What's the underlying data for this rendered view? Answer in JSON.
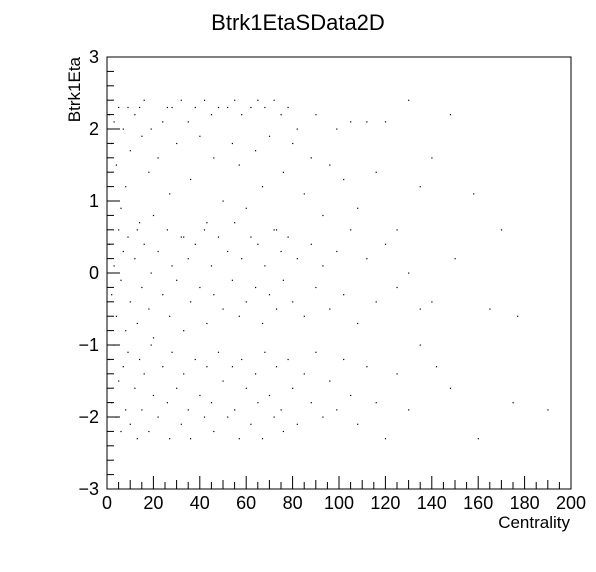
{
  "chart_data": {
    "type": "scatter",
    "title": "Btrk1EtaSData2D",
    "xlabel": "Centrality",
    "ylabel": "Btrk1Eta",
    "xlim": [
      0,
      200
    ],
    "ylim": [
      -3,
      3
    ],
    "x_ticks": [
      0,
      20,
      40,
      60,
      80,
      100,
      120,
      140,
      160,
      180,
      200
    ],
    "y_ticks": [
      -3,
      -2,
      -1,
      0,
      1,
      2,
      3
    ],
    "grid": false,
    "legend": "none",
    "marker_color": "#000000",
    "series": [
      {
        "points": [
          [
            1,
            2.2
          ],
          [
            2,
            1.8
          ],
          [
            3,
            2.1
          ],
          [
            4,
            1.5
          ],
          [
            5,
            2.3
          ],
          [
            6,
            0.9
          ],
          [
            7,
            2.0
          ],
          [
            8,
            1.2
          ],
          [
            9,
            2.3
          ],
          [
            10,
            1.7
          ],
          [
            12,
            2.2
          ],
          [
            13,
            0.6
          ],
          [
            14,
            2.3
          ],
          [
            15,
            1.9
          ],
          [
            16,
            2.4
          ],
          [
            18,
            1.4
          ],
          [
            19,
            2.0
          ],
          [
            20,
            0.8
          ],
          [
            22,
            1.6
          ],
          [
            24,
            2.1
          ],
          [
            26,
            2.3
          ],
          [
            27,
            1.1
          ],
          [
            28,
            2.3
          ],
          [
            30,
            1.8
          ],
          [
            32,
            2.4
          ],
          [
            33,
            0.5
          ],
          [
            35,
            2.1
          ],
          [
            36,
            1.3
          ],
          [
            38,
            2.3
          ],
          [
            40,
            1.9
          ],
          [
            42,
            2.4
          ],
          [
            43,
            0.7
          ],
          [
            45,
            2.2
          ],
          [
            46,
            1.6
          ],
          [
            48,
            2.3
          ],
          [
            50,
            1.0
          ],
          [
            52,
            2.3
          ],
          [
            54,
            1.8
          ],
          [
            55,
            2.4
          ],
          [
            57,
            1.5
          ],
          [
            58,
            2.2
          ],
          [
            60,
            0.9
          ],
          [
            62,
            2.3
          ],
          [
            64,
            1.7
          ],
          [
            65,
            2.4
          ],
          [
            67,
            1.2
          ],
          [
            68,
            2.3
          ],
          [
            70,
            1.9
          ],
          [
            72,
            2.4
          ],
          [
            73,
            0.6
          ],
          [
            75,
            2.2
          ],
          [
            76,
            1.4
          ],
          [
            78,
            2.3
          ],
          [
            80,
            1.8
          ],
          [
            82,
            2.0
          ],
          [
            85,
            1.1
          ],
          [
            88,
            1.6
          ],
          [
            90,
            2.2
          ],
          [
            93,
            0.8
          ],
          [
            96,
            1.5
          ],
          [
            99,
            2.0
          ],
          [
            102,
            1.3
          ],
          [
            105,
            2.1
          ],
          [
            108,
            0.9
          ],
          [
            112,
            2.1
          ],
          [
            116,
            1.4
          ],
          [
            120,
            2.1
          ],
          [
            125,
            0.6
          ],
          [
            130,
            2.4
          ],
          [
            135,
            1.2
          ],
          [
            140,
            1.6
          ],
          [
            148,
            2.2
          ],
          [
            158,
            1.1
          ],
          [
            170,
            0.6
          ],
          [
            1,
            0.4
          ],
          [
            2,
            -0.3
          ],
          [
            3,
            0.1
          ],
          [
            4,
            -0.6
          ],
          [
            5,
            0.6
          ],
          [
            6,
            -0.1
          ],
          [
            7,
            0.3
          ],
          [
            8,
            -0.8
          ],
          [
            9,
            0.5
          ],
          [
            10,
            -0.4
          ],
          [
            12,
            0.2
          ],
          [
            13,
            -0.7
          ],
          [
            14,
            0.7
          ],
          [
            15,
            -0.2
          ],
          [
            16,
            0.4
          ],
          [
            18,
            -0.5
          ],
          [
            19,
            0.0
          ],
          [
            20,
            -0.9
          ],
          [
            22,
            0.3
          ],
          [
            24,
            -0.3
          ],
          [
            26,
            0.6
          ],
          [
            27,
            -0.6
          ],
          [
            28,
            0.1
          ],
          [
            30,
            -0.1
          ],
          [
            32,
            0.5
          ],
          [
            33,
            -0.8
          ],
          [
            35,
            0.2
          ],
          [
            36,
            -0.4
          ],
          [
            38,
            0.4
          ],
          [
            40,
            -0.2
          ],
          [
            42,
            0.6
          ],
          [
            43,
            -0.7
          ],
          [
            45,
            0.1
          ],
          [
            46,
            -0.3
          ],
          [
            48,
            0.5
          ],
          [
            50,
            -0.5
          ],
          [
            52,
            0.3
          ],
          [
            54,
            -0.1
          ],
          [
            55,
            0.7
          ],
          [
            57,
            -0.6
          ],
          [
            58,
            0.2
          ],
          [
            60,
            -0.4
          ],
          [
            62,
            0.5
          ],
          [
            64,
            -0.2
          ],
          [
            65,
            0.4
          ],
          [
            67,
            -0.7
          ],
          [
            68,
            0.1
          ],
          [
            70,
            -0.3
          ],
          [
            72,
            0.6
          ],
          [
            73,
            -0.5
          ],
          [
            75,
            0.3
          ],
          [
            76,
            -0.1
          ],
          [
            78,
            0.5
          ],
          [
            80,
            -0.4
          ],
          [
            82,
            0.2
          ],
          [
            85,
            -0.6
          ],
          [
            88,
            0.4
          ],
          [
            90,
            -0.2
          ],
          [
            93,
            0.1
          ],
          [
            96,
            -0.5
          ],
          [
            99,
            0.3
          ],
          [
            102,
            -0.3
          ],
          [
            105,
            0.6
          ],
          [
            108,
            -0.7
          ],
          [
            112,
            0.2
          ],
          [
            116,
            -0.4
          ],
          [
            120,
            0.4
          ],
          [
            125,
            -0.2
          ],
          [
            130,
            0.0
          ],
          [
            135,
            -0.5
          ],
          [
            140,
            -0.4
          ],
          [
            150,
            0.2
          ],
          [
            165,
            -0.5
          ],
          [
            177,
            -0.6
          ],
          [
            1,
            -1.2
          ],
          [
            2,
            -1.8
          ],
          [
            3,
            -1.0
          ],
          [
            4,
            -2.0
          ],
          [
            5,
            -1.5
          ],
          [
            6,
            -2.2
          ],
          [
            7,
            -1.3
          ],
          [
            8,
            -1.9
          ],
          [
            9,
            -1.1
          ],
          [
            10,
            -2.1
          ],
          [
            12,
            -1.6
          ],
          [
            13,
            -2.3
          ],
          [
            14,
            -1.2
          ],
          [
            15,
            -1.9
          ],
          [
            16,
            -1.4
          ],
          [
            18,
            -2.2
          ],
          [
            19,
            -1.0
          ],
          [
            20,
            -1.7
          ],
          [
            22,
            -2.0
          ],
          [
            24,
            -1.3
          ],
          [
            26,
            -1.8
          ],
          [
            27,
            -2.3
          ],
          [
            28,
            -1.1
          ],
          [
            30,
            -1.6
          ],
          [
            32,
            -2.1
          ],
          [
            33,
            -1.4
          ],
          [
            35,
            -1.9
          ],
          [
            36,
            -2.3
          ],
          [
            38,
            -1.2
          ],
          [
            40,
            -1.7
          ],
          [
            42,
            -2.0
          ],
          [
            43,
            -1.3
          ],
          [
            45,
            -1.8
          ],
          [
            46,
            -2.2
          ],
          [
            48,
            -1.1
          ],
          [
            50,
            -1.5
          ],
          [
            52,
            -2.0
          ],
          [
            54,
            -1.3
          ],
          [
            55,
            -1.9
          ],
          [
            57,
            -2.3
          ],
          [
            58,
            -1.2
          ],
          [
            60,
            -1.6
          ],
          [
            62,
            -2.1
          ],
          [
            64,
            -1.4
          ],
          [
            65,
            -1.8
          ],
          [
            67,
            -2.3
          ],
          [
            68,
            -1.1
          ],
          [
            70,
            -1.7
          ],
          [
            72,
            -2.0
          ],
          [
            73,
            -1.3
          ],
          [
            75,
            -1.9
          ],
          [
            76,
            -2.2
          ],
          [
            78,
            -1.2
          ],
          [
            80,
            -1.6
          ],
          [
            82,
            -2.1
          ],
          [
            85,
            -1.4
          ],
          [
            88,
            -1.8
          ],
          [
            90,
            -1.1
          ],
          [
            93,
            -2.0
          ],
          [
            96,
            -1.5
          ],
          [
            99,
            -1.9
          ],
          [
            102,
            -1.2
          ],
          [
            105,
            -1.7
          ],
          [
            108,
            -2.1
          ],
          [
            112,
            -1.3
          ],
          [
            116,
            -1.8
          ],
          [
            120,
            -2.3
          ],
          [
            125,
            -1.4
          ],
          [
            130,
            -1.9
          ],
          [
            135,
            -1.0
          ],
          [
            142,
            -1.3
          ],
          [
            148,
            -1.6
          ],
          [
            160,
            -2.3
          ],
          [
            175,
            -1.8
          ],
          [
            190,
            -1.9
          ]
        ]
      }
    ]
  }
}
